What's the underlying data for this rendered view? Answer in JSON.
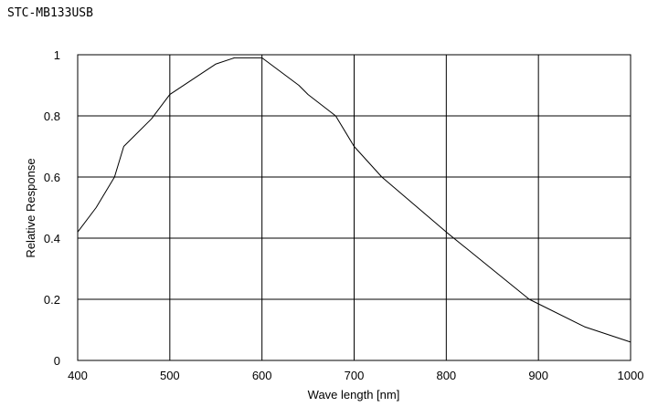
{
  "chart_data": {
    "type": "line",
    "title": "STC-MB133USB",
    "xlabel": "Wave length [nm]",
    "ylabel": "Relative Response",
    "xlim": [
      400,
      1000
    ],
    "ylim": [
      0,
      1
    ],
    "xticks": [
      400,
      500,
      600,
      700,
      800,
      900,
      1000
    ],
    "yticks": [
      0,
      0.2,
      0.4,
      0.6,
      0.8,
      1
    ],
    "ytick_labels": [
      "0",
      "0.2",
      "0.4",
      "0.6",
      "0.8",
      "1"
    ],
    "grid": true,
    "legend": "none",
    "series": [
      {
        "x": [
          400,
          420,
          440,
          450,
          480,
          500,
          530,
          550,
          570,
          600,
          640,
          650,
          680,
          700,
          730,
          800,
          890,
          950,
          1000
        ],
        "y": [
          0.42,
          0.5,
          0.6,
          0.7,
          0.79,
          0.87,
          0.93,
          0.97,
          0.99,
          0.99,
          0.9,
          0.87,
          0.8,
          0.7,
          0.6,
          0.42,
          0.2,
          0.11,
          0.06
        ]
      }
    ],
    "colors": {
      "line": "#000000",
      "grid": "#000000"
    }
  }
}
